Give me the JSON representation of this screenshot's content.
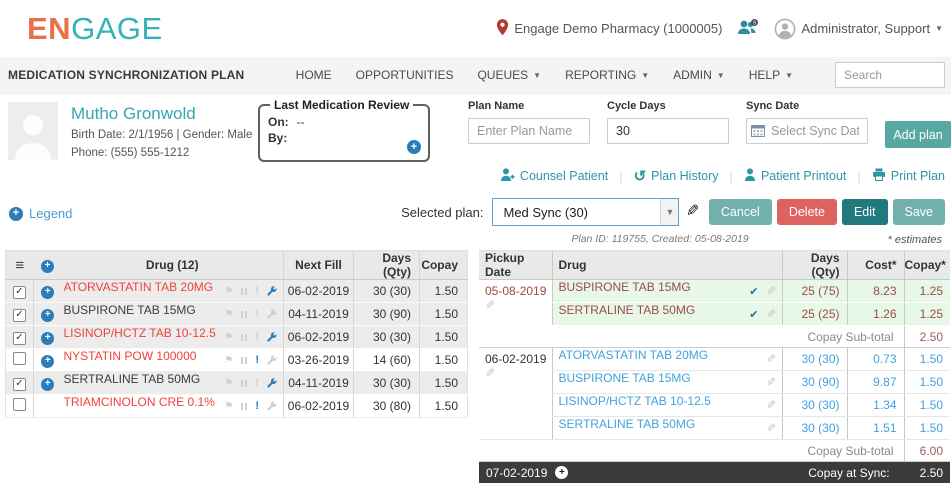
{
  "header": {
    "logo_en": "EN",
    "logo_gage": "GAGE",
    "pharmacy": "Engage Demo Pharmacy  (1000005)",
    "user": "Administrator, Support"
  },
  "navbar": {
    "title": "MEDICATION SYNCHRONIZATION PLAN",
    "items": [
      {
        "label": "HOME",
        "caret": false
      },
      {
        "label": "OPPORTUNITIES",
        "caret": false
      },
      {
        "label": "QUEUES",
        "caret": true
      },
      {
        "label": "REPORTING",
        "caret": true
      },
      {
        "label": "ADMIN",
        "caret": true
      },
      {
        "label": "HELP",
        "caret": true
      }
    ],
    "search_placeholder": "Search"
  },
  "patient": {
    "name": "Mutho Gronwold",
    "birth_gender": "Birth Date: 2/1/1956 | Gender: Male",
    "phone": "Phone: (555) 555-1212"
  },
  "last_review": {
    "title": "Last Medication Review",
    "on_label": "On:",
    "on_value": "--",
    "by_label": "By:"
  },
  "plan_form": {
    "plan_name_label": "Plan Name",
    "plan_name_placeholder": "Enter Plan Name",
    "cycle_days_label": "Cycle Days",
    "cycle_days_value": "30",
    "sync_date_label": "Sync Date",
    "sync_date_placeholder": "Select Sync Date",
    "add_plan_label": "Add plan"
  },
  "actions": {
    "counsel": "Counsel Patient",
    "history": "Plan History",
    "printout": "Patient Printout",
    "print": "Print Plan"
  },
  "selected_plan": {
    "label": "Selected plan:",
    "value": "Med Sync (30)",
    "meta": "Plan ID: 119755, Created: 05-08-2019",
    "cancel": "Cancel",
    "delete": "Delete",
    "edit": "Edit",
    "save": "Save",
    "estimates_note": "* estimates"
  },
  "legend_label": "Legend",
  "left_table": {
    "headers": {
      "drug": "Drug (12)",
      "next_fill": "Next Fill",
      "days_qty": "Days (Qty)",
      "copay": "Copay"
    },
    "rows": [
      {
        "checked": true,
        "plus": true,
        "drug": "ATORVASTATIN TAB 20MG",
        "drug_color": "red",
        "alert": false,
        "wrench": true,
        "next_fill": "06-02-2019",
        "days_qty": "30 (30)",
        "copay": "1.50"
      },
      {
        "checked": true,
        "plus": true,
        "drug": "BUSPIRONE TAB 15MG",
        "drug_color": "dark",
        "alert": false,
        "wrench": false,
        "next_fill": "04-11-2019",
        "days_qty": "30 (90)",
        "copay": "1.50"
      },
      {
        "checked": true,
        "plus": true,
        "drug": "LISINOP/HCTZ TAB 10-12.5",
        "drug_color": "red",
        "alert": false,
        "wrench": true,
        "next_fill": "06-02-2019",
        "days_qty": "30 (30)",
        "copay": "1.50"
      },
      {
        "checked": false,
        "plus": true,
        "drug": "NYSTATIN POW 100000",
        "drug_color": "red",
        "alert": true,
        "wrench": false,
        "next_fill": "03-26-2019",
        "days_qty": "14 (60)",
        "copay": "1.50"
      },
      {
        "checked": true,
        "plus": true,
        "drug": "SERTRALINE TAB 50MG",
        "drug_color": "dark",
        "alert": false,
        "wrench": true,
        "next_fill": "04-11-2019",
        "days_qty": "30 (30)",
        "copay": "1.50"
      },
      {
        "checked": false,
        "plus": false,
        "drug": "TRIAMCINOLON CRE 0.1%",
        "drug_color": "red",
        "alert": true,
        "wrench": false,
        "next_fill": "06-02-2019",
        "days_qty": "30 (80)",
        "copay": "1.50"
      }
    ]
  },
  "right_table": {
    "headers": {
      "pickup": "Pickup Date",
      "drug": "Drug",
      "days_qty": "Days (Qty)",
      "cost": "Cost*",
      "copay": "Copay*"
    },
    "groups": [
      {
        "date": "05-08-2019",
        "style": "green",
        "rows": [
          {
            "drug": "BUSPIRONE TAB 15MG",
            "checked": true,
            "days_qty": "25 (75)",
            "cost": "8.23",
            "copay": "1.25"
          },
          {
            "drug": "SERTRALINE TAB 50MG",
            "checked": true,
            "days_qty": "25 (25)",
            "cost": "1.26",
            "copay": "1.25"
          }
        ],
        "subtotal_label": "Copay Sub-total",
        "subtotal": "2.50"
      },
      {
        "date": "06-02-2019",
        "style": "blue",
        "rows": [
          {
            "drug": "ATORVASTATIN TAB 20MG",
            "checked": false,
            "days_qty": "30 (30)",
            "cost": "0.73",
            "copay": "1.50"
          },
          {
            "drug": "BUSPIRONE TAB 15MG",
            "checked": false,
            "days_qty": "30 (90)",
            "cost": "9.87",
            "copay": "1.50"
          },
          {
            "drug": "LISINOP/HCTZ TAB 10-12.5",
            "checked": false,
            "days_qty": "30 (30)",
            "cost": "1.34",
            "copay": "1.50"
          },
          {
            "drug": "SERTRALINE TAB 50MG",
            "checked": false,
            "days_qty": "30 (30)",
            "cost": "1.51",
            "copay": "1.50"
          }
        ],
        "subtotal_label": "Copay Sub-total",
        "subtotal": "6.00"
      }
    ],
    "footer": {
      "date": "07-02-2019",
      "label": "Copay at Sync:",
      "value": "2.50"
    }
  },
  "colors": {
    "accent_orange": "#e8714b",
    "accent_teal": "#35b2b7",
    "link_teal": "#2d96a5",
    "icon_blue": "#2b7cb9",
    "drug_red": "#f0433b",
    "group_maroon": "#9f4a46",
    "group_blue": "#41a3dc",
    "group_green_bg": "#e7f8e9",
    "dark_bar": "#3b3b3b",
    "btn_muted_teal": "#72b1ab",
    "btn_red": "#de6360",
    "btn_dark_teal": "#20797d"
  }
}
